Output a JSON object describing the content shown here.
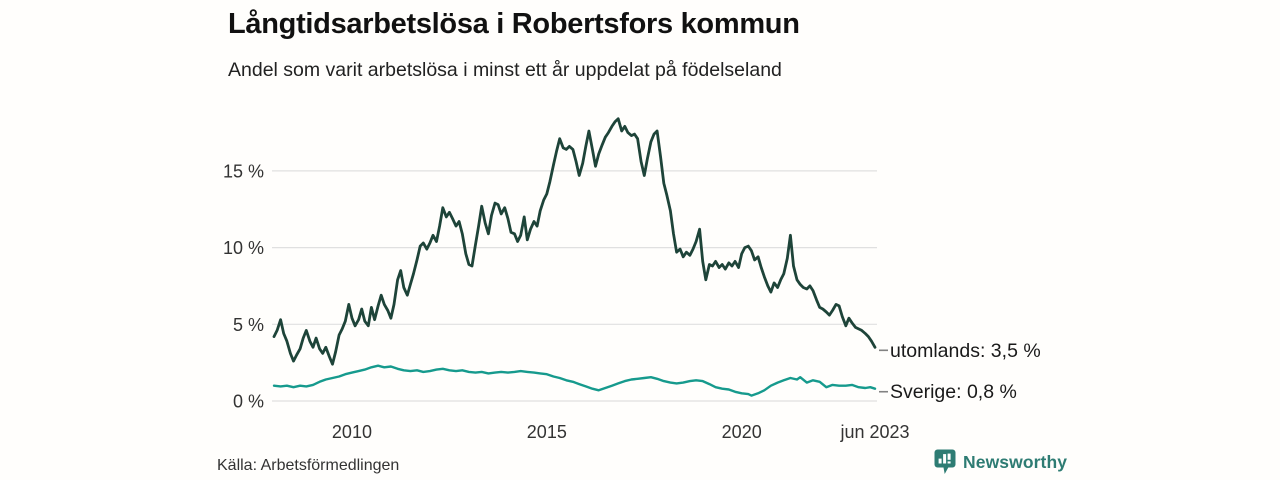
{
  "header": {
    "title": "Långtidsarbetslösa i Robertsfors kommun",
    "subtitle": "Andel som varit arbetslösa i minst ett år uppdelat på födelseland"
  },
  "footer": {
    "source": "Källa: Arbetsförmedlingen",
    "brand": "Newsworthy",
    "brand_color": "#2e7c73"
  },
  "icons": {
    "brand": "bar-chart-speech-bubble-icon"
  },
  "chart_data": {
    "type": "line",
    "title": "Långtidsarbetslösa i Robertsfors kommun",
    "subtitle": "Andel som varit arbetslösa i minst ett år uppdelat på födelseland",
    "unit": "%",
    "grid": "horizontal",
    "grid_color": "#e0e0e0",
    "tick_color": "#333333",
    "end_label_color": "#1a1a1a",
    "end_label_dash_color": "#828282",
    "legend_position": "end-of-line",
    "x_axis": {
      "range": [
        2008.0,
        2023.42
      ],
      "ticks": [
        {
          "label": "2010",
          "value": 2010
        },
        {
          "label": "2015",
          "value": 2015
        },
        {
          "label": "2020",
          "value": 2020
        },
        {
          "label": "jun 2023",
          "value": 2023.42
        }
      ]
    },
    "y_axis": {
      "range": [
        0,
        19
      ],
      "ticks": [
        {
          "label": "0 %",
          "value": 0
        },
        {
          "label": "5 %",
          "value": 5
        },
        {
          "label": "10 %",
          "value": 10
        },
        {
          "label": "15 %",
          "value": 15
        }
      ]
    },
    "series": [
      {
        "name": "utomlands",
        "color": "#1e4439",
        "line_width": 2.8,
        "end_label": "utomlands: 3,5 %",
        "last_value": 3.5,
        "points": [
          [
            2008.0,
            4.2
          ],
          [
            2008.08,
            4.6
          ],
          [
            2008.17,
            5.3
          ],
          [
            2008.25,
            4.4
          ],
          [
            2008.33,
            3.9
          ],
          [
            2008.42,
            3.1
          ],
          [
            2008.5,
            2.6
          ],
          [
            2008.58,
            3.0
          ],
          [
            2008.67,
            3.4
          ],
          [
            2008.75,
            4.1
          ],
          [
            2008.83,
            4.6
          ],
          [
            2008.92,
            3.9
          ],
          [
            2009.0,
            3.5
          ],
          [
            2009.08,
            4.1
          ],
          [
            2009.17,
            3.4
          ],
          [
            2009.25,
            3.1
          ],
          [
            2009.33,
            3.5
          ],
          [
            2009.42,
            2.9
          ],
          [
            2009.5,
            2.4
          ],
          [
            2009.58,
            3.2
          ],
          [
            2009.67,
            4.3
          ],
          [
            2009.75,
            4.7
          ],
          [
            2009.83,
            5.2
          ],
          [
            2009.92,
            6.3
          ],
          [
            2010.0,
            5.4
          ],
          [
            2010.08,
            4.9
          ],
          [
            2010.17,
            5.3
          ],
          [
            2010.25,
            6.0
          ],
          [
            2010.33,
            5.2
          ],
          [
            2010.42,
            4.9
          ],
          [
            2010.5,
            6.1
          ],
          [
            2010.58,
            5.3
          ],
          [
            2010.67,
            6.2
          ],
          [
            2010.75,
            6.9
          ],
          [
            2010.83,
            6.3
          ],
          [
            2010.92,
            5.9
          ],
          [
            2011.0,
            5.4
          ],
          [
            2011.08,
            6.3
          ],
          [
            2011.17,
            7.9
          ],
          [
            2011.25,
            8.5
          ],
          [
            2011.33,
            7.4
          ],
          [
            2011.42,
            6.9
          ],
          [
            2011.5,
            7.6
          ],
          [
            2011.58,
            8.3
          ],
          [
            2011.67,
            9.2
          ],
          [
            2011.75,
            10.1
          ],
          [
            2011.83,
            10.3
          ],
          [
            2011.92,
            9.9
          ],
          [
            2012.0,
            10.3
          ],
          [
            2012.08,
            10.8
          ],
          [
            2012.17,
            10.4
          ],
          [
            2012.25,
            11.4
          ],
          [
            2012.33,
            12.6
          ],
          [
            2012.42,
            12.0
          ],
          [
            2012.5,
            12.3
          ],
          [
            2012.58,
            11.9
          ],
          [
            2012.67,
            11.4
          ],
          [
            2012.75,
            11.7
          ],
          [
            2012.83,
            10.9
          ],
          [
            2012.92,
            9.6
          ],
          [
            2013.0,
            8.9
          ],
          [
            2013.08,
            8.8
          ],
          [
            2013.17,
            10.2
          ],
          [
            2013.25,
            11.4
          ],
          [
            2013.33,
            12.7
          ],
          [
            2013.42,
            11.6
          ],
          [
            2013.5,
            10.9
          ],
          [
            2013.58,
            12.1
          ],
          [
            2013.67,
            12.9
          ],
          [
            2013.75,
            12.8
          ],
          [
            2013.83,
            12.2
          ],
          [
            2013.92,
            12.6
          ],
          [
            2014.0,
            11.9
          ],
          [
            2014.08,
            11.0
          ],
          [
            2014.17,
            10.9
          ],
          [
            2014.25,
            10.4
          ],
          [
            2014.33,
            10.8
          ],
          [
            2014.42,
            12.0
          ],
          [
            2014.5,
            10.5
          ],
          [
            2014.58,
            11.2
          ],
          [
            2014.67,
            11.7
          ],
          [
            2014.75,
            11.4
          ],
          [
            2014.83,
            12.4
          ],
          [
            2014.92,
            13.1
          ],
          [
            2015.0,
            13.5
          ],
          [
            2015.08,
            14.3
          ],
          [
            2015.17,
            15.4
          ],
          [
            2015.25,
            16.3
          ],
          [
            2015.33,
            17.1
          ],
          [
            2015.42,
            16.5
          ],
          [
            2015.5,
            16.4
          ],
          [
            2015.58,
            16.6
          ],
          [
            2015.67,
            16.4
          ],
          [
            2015.75,
            15.6
          ],
          [
            2015.83,
            14.7
          ],
          [
            2015.92,
            15.5
          ],
          [
            2016.0,
            16.6
          ],
          [
            2016.08,
            17.6
          ],
          [
            2016.17,
            16.4
          ],
          [
            2016.25,
            15.3
          ],
          [
            2016.33,
            16.1
          ],
          [
            2016.42,
            16.7
          ],
          [
            2016.5,
            17.2
          ],
          [
            2016.58,
            17.5
          ],
          [
            2016.67,
            17.9
          ],
          [
            2016.75,
            18.2
          ],
          [
            2016.83,
            18.4
          ],
          [
            2016.92,
            17.6
          ],
          [
            2017.0,
            17.9
          ],
          [
            2017.08,
            17.5
          ],
          [
            2017.17,
            17.3
          ],
          [
            2017.25,
            17.4
          ],
          [
            2017.33,
            17.1
          ],
          [
            2017.42,
            15.6
          ],
          [
            2017.5,
            14.7
          ],
          [
            2017.58,
            15.8
          ],
          [
            2017.67,
            16.9
          ],
          [
            2017.75,
            17.4
          ],
          [
            2017.83,
            17.6
          ],
          [
            2017.92,
            15.9
          ],
          [
            2018.0,
            14.2
          ],
          [
            2018.08,
            13.4
          ],
          [
            2018.17,
            12.4
          ],
          [
            2018.25,
            10.9
          ],
          [
            2018.33,
            9.7
          ],
          [
            2018.42,
            9.9
          ],
          [
            2018.5,
            9.4
          ],
          [
            2018.58,
            9.7
          ],
          [
            2018.67,
            9.5
          ],
          [
            2018.75,
            9.9
          ],
          [
            2018.83,
            10.4
          ],
          [
            2018.92,
            11.2
          ],
          [
            2019.0,
            9.1
          ],
          [
            2019.08,
            7.9
          ],
          [
            2019.17,
            8.9
          ],
          [
            2019.25,
            8.8
          ],
          [
            2019.33,
            9.1
          ],
          [
            2019.42,
            8.7
          ],
          [
            2019.5,
            8.9
          ],
          [
            2019.58,
            8.6
          ],
          [
            2019.67,
            9.0
          ],
          [
            2019.75,
            8.8
          ],
          [
            2019.83,
            9.1
          ],
          [
            2019.92,
            8.7
          ],
          [
            2020.0,
            9.6
          ],
          [
            2020.08,
            10.0
          ],
          [
            2020.17,
            10.1
          ],
          [
            2020.25,
            9.8
          ],
          [
            2020.33,
            9.2
          ],
          [
            2020.42,
            9.4
          ],
          [
            2020.5,
            8.7
          ],
          [
            2020.58,
            8.1
          ],
          [
            2020.67,
            7.5
          ],
          [
            2020.75,
            7.1
          ],
          [
            2020.83,
            7.7
          ],
          [
            2020.92,
            7.4
          ],
          [
            2021.0,
            7.9
          ],
          [
            2021.08,
            8.3
          ],
          [
            2021.17,
            9.3
          ],
          [
            2021.25,
            10.8
          ],
          [
            2021.33,
            8.8
          ],
          [
            2021.42,
            7.9
          ],
          [
            2021.5,
            7.6
          ],
          [
            2021.58,
            7.4
          ],
          [
            2021.67,
            7.3
          ],
          [
            2021.75,
            7.5
          ],
          [
            2021.83,
            7.2
          ],
          [
            2021.92,
            6.6
          ],
          [
            2022.0,
            6.1
          ],
          [
            2022.08,
            6.0
          ],
          [
            2022.17,
            5.8
          ],
          [
            2022.25,
            5.6
          ],
          [
            2022.33,
            5.9
          ],
          [
            2022.42,
            6.3
          ],
          [
            2022.5,
            6.2
          ],
          [
            2022.58,
            5.5
          ],
          [
            2022.67,
            4.9
          ],
          [
            2022.75,
            5.4
          ],
          [
            2022.83,
            5.1
          ],
          [
            2022.92,
            4.8
          ],
          [
            2023.0,
            4.7
          ],
          [
            2023.08,
            4.6
          ],
          [
            2023.17,
            4.4
          ],
          [
            2023.25,
            4.2
          ],
          [
            2023.33,
            3.9
          ],
          [
            2023.42,
            3.5
          ]
        ]
      },
      {
        "name": "Sverige",
        "color": "#169a8d",
        "line_width": 2.4,
        "end_label": "Sverige: 0,8 %",
        "last_value": 0.8,
        "points": [
          [
            2008.0,
            1.0
          ],
          [
            2008.17,
            0.95
          ],
          [
            2008.33,
            1.0
          ],
          [
            2008.5,
            0.9
          ],
          [
            2008.67,
            1.0
          ],
          [
            2008.83,
            0.95
          ],
          [
            2009.0,
            1.05
          ],
          [
            2009.17,
            1.25
          ],
          [
            2009.33,
            1.4
          ],
          [
            2009.5,
            1.5
          ],
          [
            2009.67,
            1.6
          ],
          [
            2009.83,
            1.75
          ],
          [
            2010.0,
            1.85
          ],
          [
            2010.17,
            1.95
          ],
          [
            2010.33,
            2.05
          ],
          [
            2010.5,
            2.2
          ],
          [
            2010.67,
            2.3
          ],
          [
            2010.83,
            2.2
          ],
          [
            2011.0,
            2.25
          ],
          [
            2011.17,
            2.1
          ],
          [
            2011.33,
            2.0
          ],
          [
            2011.5,
            1.95
          ],
          [
            2011.67,
            2.0
          ],
          [
            2011.83,
            1.9
          ],
          [
            2012.0,
            1.95
          ],
          [
            2012.17,
            2.05
          ],
          [
            2012.33,
            2.1
          ],
          [
            2012.5,
            2.0
          ],
          [
            2012.67,
            1.95
          ],
          [
            2012.83,
            2.0
          ],
          [
            2013.0,
            1.9
          ],
          [
            2013.17,
            1.85
          ],
          [
            2013.33,
            1.9
          ],
          [
            2013.5,
            1.8
          ],
          [
            2013.67,
            1.85
          ],
          [
            2013.83,
            1.9
          ],
          [
            2014.0,
            1.85
          ],
          [
            2014.17,
            1.9
          ],
          [
            2014.33,
            1.95
          ],
          [
            2014.5,
            1.9
          ],
          [
            2014.67,
            1.85
          ],
          [
            2014.83,
            1.8
          ],
          [
            2015.0,
            1.75
          ],
          [
            2015.17,
            1.6
          ],
          [
            2015.33,
            1.5
          ],
          [
            2015.5,
            1.35
          ],
          [
            2015.67,
            1.25
          ],
          [
            2015.83,
            1.1
          ],
          [
            2016.0,
            0.95
          ],
          [
            2016.17,
            0.8
          ],
          [
            2016.33,
            0.7
          ],
          [
            2016.5,
            0.85
          ],
          [
            2016.67,
            1.0
          ],
          [
            2016.83,
            1.15
          ],
          [
            2017.0,
            1.3
          ],
          [
            2017.17,
            1.4
          ],
          [
            2017.33,
            1.45
          ],
          [
            2017.5,
            1.5
          ],
          [
            2017.67,
            1.55
          ],
          [
            2017.83,
            1.45
          ],
          [
            2018.0,
            1.3
          ],
          [
            2018.17,
            1.2
          ],
          [
            2018.33,
            1.15
          ],
          [
            2018.5,
            1.2
          ],
          [
            2018.67,
            1.3
          ],
          [
            2018.83,
            1.35
          ],
          [
            2019.0,
            1.3
          ],
          [
            2019.17,
            1.1
          ],
          [
            2019.33,
            0.9
          ],
          [
            2019.5,
            0.8
          ],
          [
            2019.67,
            0.75
          ],
          [
            2019.83,
            0.6
          ],
          [
            2020.0,
            0.5
          ],
          [
            2020.17,
            0.45
          ],
          [
            2020.25,
            0.35
          ],
          [
            2020.42,
            0.5
          ],
          [
            2020.58,
            0.7
          ],
          [
            2020.75,
            1.0
          ],
          [
            2020.92,
            1.2
          ],
          [
            2021.08,
            1.35
          ],
          [
            2021.25,
            1.5
          ],
          [
            2021.42,
            1.4
          ],
          [
            2021.5,
            1.55
          ],
          [
            2021.67,
            1.2
          ],
          [
            2021.83,
            1.35
          ],
          [
            2022.0,
            1.25
          ],
          [
            2022.17,
            0.9
          ],
          [
            2022.33,
            1.05
          ],
          [
            2022.5,
            1.0
          ],
          [
            2022.67,
            1.0
          ],
          [
            2022.83,
            1.05
          ],
          [
            2023.0,
            0.9
          ],
          [
            2023.17,
            0.85
          ],
          [
            2023.3,
            0.9
          ],
          [
            2023.42,
            0.8
          ]
        ]
      }
    ]
  }
}
